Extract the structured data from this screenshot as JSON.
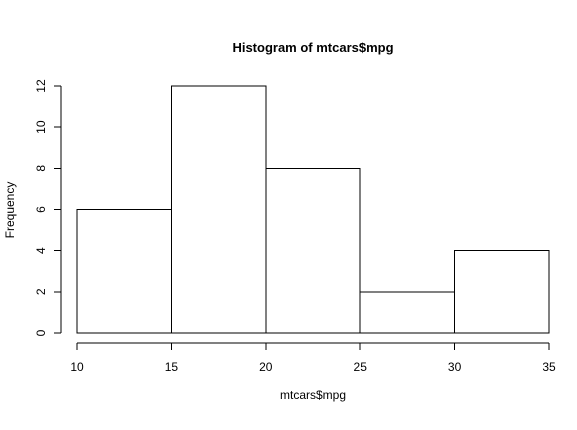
{
  "chart_data": {
    "type": "bar",
    "subtype": "histogram",
    "title": "Histogram of mtcars$mpg",
    "xlabel": "mtcars$mpg",
    "ylabel": "Frequency",
    "bins": [
      {
        "start": 10,
        "end": 15,
        "count": 6
      },
      {
        "start": 15,
        "end": 20,
        "count": 12
      },
      {
        "start": 20,
        "end": 25,
        "count": 8
      },
      {
        "start": 25,
        "end": 30,
        "count": 2
      },
      {
        "start": 30,
        "end": 35,
        "count": 4
      }
    ],
    "xlim": [
      10,
      35
    ],
    "ylim": [
      0,
      12
    ],
    "x_ticks": [
      "10",
      "15",
      "20",
      "25",
      "30",
      "35"
    ],
    "y_ticks": [
      "0",
      "2",
      "4",
      "6",
      "8",
      "10",
      "12"
    ],
    "grid": false,
    "legend": "none",
    "bar_fill": "#ffffff",
    "bar_stroke": "#000000"
  }
}
